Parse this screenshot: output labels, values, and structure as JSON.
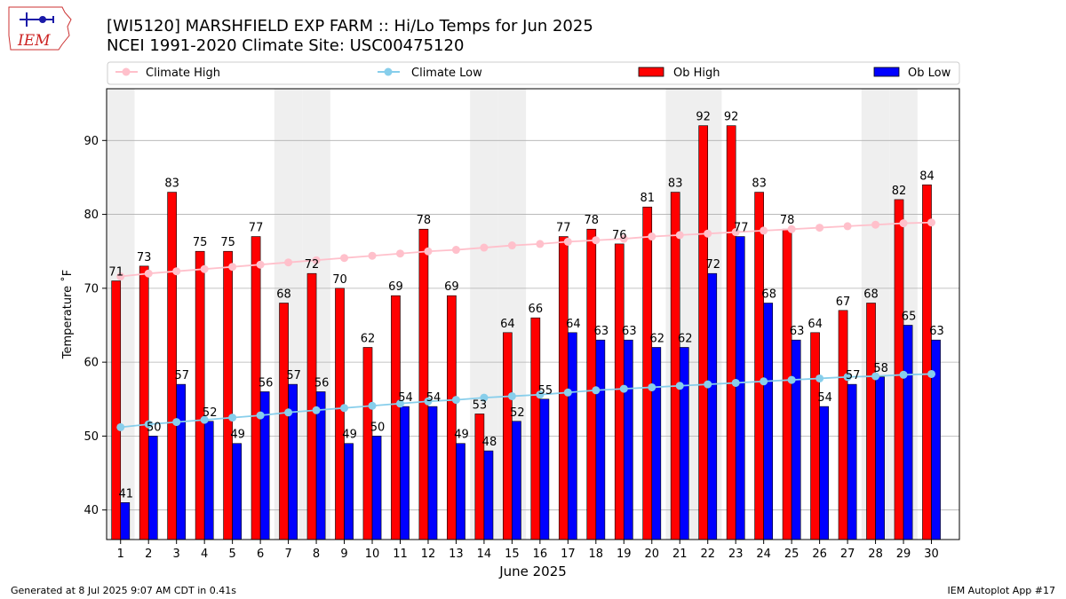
{
  "header": {
    "title_line1": "[WI5120] MARSHFIELD EXP FARM :: Hi/Lo Temps for Jun 2025",
    "title_line2": "NCEI 1991-2020 Climate Site: USC00475120",
    "logo_text": "IEM"
  },
  "footer": {
    "generated": "Generated at 8 Jul 2025 9:07 AM CDT in 0.41s",
    "app": "IEM Autoplot App #17"
  },
  "colors": {
    "ob_high": "#ff0000",
    "ob_low": "#0000ff",
    "climate_high": "#ffc0cb",
    "climate_low": "#87ceeb",
    "weekend_shade": "#efefef",
    "grid": "#b0b0b0"
  },
  "chart_data": {
    "type": "bar",
    "xlabel": "June 2025",
    "ylabel": "Temperature ˚F",
    "ylim": [
      36,
      97
    ],
    "yticks": [
      40,
      50,
      60,
      70,
      80,
      90
    ],
    "grid": "horizontal",
    "legend_placement": "top",
    "categories": [
      "1",
      "2",
      "3",
      "4",
      "5",
      "6",
      "7",
      "8",
      "9",
      "10",
      "11",
      "12",
      "13",
      "14",
      "15",
      "16",
      "17",
      "18",
      "19",
      "20",
      "21",
      "22",
      "23",
      "24",
      "25",
      "26",
      "27",
      "28",
      "29",
      "30"
    ],
    "shaded_days": [
      1,
      7,
      8,
      14,
      15,
      21,
      22,
      28,
      29
    ],
    "series": [
      {
        "name": "Ob High",
        "kind": "bar",
        "values": [
          71,
          73,
          83,
          75,
          75,
          77,
          68,
          72,
          70,
          62,
          69,
          78,
          69,
          53,
          64,
          66,
          77,
          78,
          76,
          81,
          83,
          92,
          92,
          83,
          78,
          64,
          67,
          68,
          82,
          84
        ]
      },
      {
        "name": "Ob Low",
        "kind": "bar",
        "values": [
          41,
          50,
          57,
          52,
          49,
          56,
          57,
          56,
          49,
          50,
          54,
          54,
          49,
          48,
          52,
          55,
          64,
          63,
          63,
          62,
          62,
          72,
          77,
          68,
          63,
          54,
          57,
          58,
          65,
          63
        ]
      },
      {
        "name": "Climate High",
        "kind": "line",
        "values": [
          71.6,
          72.0,
          72.3,
          72.6,
          72.9,
          73.2,
          73.5,
          73.8,
          74.1,
          74.4,
          74.7,
          75.0,
          75.2,
          75.5,
          75.8,
          76.0,
          76.3,
          76.5,
          76.7,
          77.0,
          77.2,
          77.4,
          77.6,
          77.8,
          78.0,
          78.2,
          78.4,
          78.6,
          78.8,
          78.9
        ]
      },
      {
        "name": "Climate Low",
        "kind": "line",
        "values": [
          51.2,
          51.6,
          51.9,
          52.2,
          52.5,
          52.8,
          53.2,
          53.5,
          53.8,
          54.1,
          54.4,
          54.7,
          54.9,
          55.2,
          55.4,
          55.6,
          55.9,
          56.2,
          56.4,
          56.6,
          56.8,
          57.0,
          57.2,
          57.4,
          57.6,
          57.8,
          58.0,
          58.1,
          58.3,
          58.4
        ]
      }
    ]
  }
}
